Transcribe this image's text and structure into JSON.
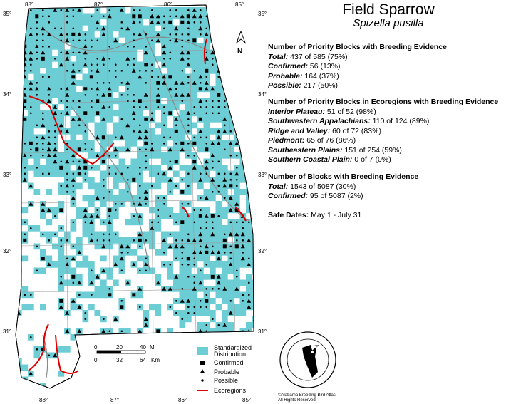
{
  "title": "Field Sparrow",
  "species_latin": "Spizella pusilla",
  "priority": {
    "heading": "Number of Priority Blocks with Breeding Evidence",
    "rows": [
      {
        "label": "Total:",
        "value": "437 of 585 (75%)"
      },
      {
        "label": "Confirmed:",
        "value": "56 (13%)"
      },
      {
        "label": "Probable:",
        "value": "164 (37%)"
      },
      {
        "label": "Possible:",
        "value": "217 (50%)"
      }
    ]
  },
  "ecoregions": {
    "heading": "Number of Priority Blocks in Ecoregions with Breeding Evidence",
    "rows": [
      {
        "label": "Interior Plateau:",
        "value": "51 of 52 (98%)"
      },
      {
        "label": "Southwestern Appalachians:",
        "value": "110 of 124 (89%)"
      },
      {
        "label": "Ridge and Valley:",
        "value": "60 of 72 (83%)"
      },
      {
        "label": "Piedmont:",
        "value": "65 of 76 (86%)"
      },
      {
        "label": "Southeastern Plains:",
        "value": "151 of 254 (59%)"
      },
      {
        "label": "Southern Coastal Plain:",
        "value": "0 of 7 (0%)"
      }
    ]
  },
  "blocks": {
    "heading": "Number of Blocks with Breeding Evidence",
    "rows": [
      {
        "label": "Total:",
        "value": "1543 of 5087 (30%)"
      },
      {
        "label": "Confirmed:",
        "value": "95 of 5087 (2%)"
      }
    ]
  },
  "safe_dates": {
    "label": "Safe Dates:",
    "value": "May 1 - July 31"
  },
  "legend": {
    "distribution": "Standardized Distribution",
    "distribution_line1": "Standardized",
    "distribution_line2": "Distribution",
    "confirmed": "Confirmed",
    "probable": "Probable",
    "possible": "Possible",
    "ecoregions": "Ecoregions"
  },
  "scale": {
    "mi_ticks": [
      "0",
      "20",
      "40"
    ],
    "mi_unit": "Mi",
    "km_ticks": [
      "0",
      "32",
      "64"
    ],
    "km_unit": "Km"
  },
  "north_label": "N",
  "lon_labels": [
    "88°",
    "87°",
    "86°",
    "85°"
  ],
  "lat_labels": [
    "35°",
    "34°",
    "33°",
    "32°",
    "31°"
  ],
  "seal_text": "BREEDING BIRD ATLAS 2000-06 ALABAMA ORNITHOLOGICAL SOCIETY",
  "credit_line1": "©Alabama Breeding Bird Atlas",
  "credit_line2": "All Rights Reserved",
  "colors": {
    "distribution": "#6ccdd5",
    "ecoregion_line": "#e00000",
    "boundary": "#777777"
  }
}
